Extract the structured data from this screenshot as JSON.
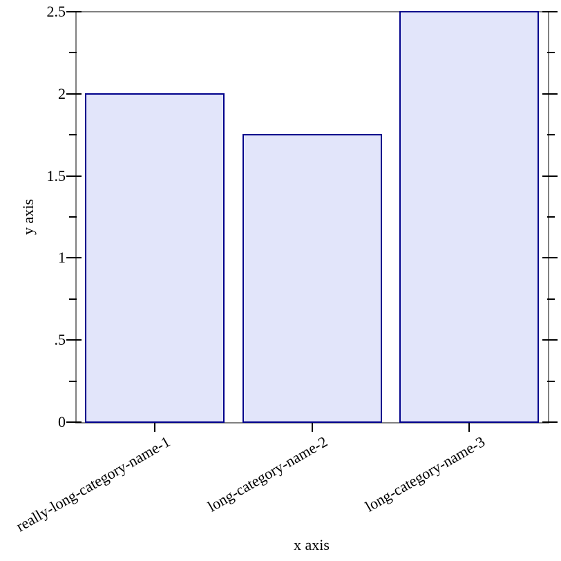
{
  "chart_data": {
    "type": "bar",
    "title": "",
    "categories": [
      "really-long-category-name-1",
      "long-category-name-2",
      "long-category-name-3"
    ],
    "values": [
      2,
      1.75,
      2.5
    ],
    "xlabel": "x axis",
    "ylabel": "y axis",
    "ylim": [
      0,
      2.5
    ],
    "y_major_ticks": [
      {
        "value": 0,
        "label": "0"
      },
      {
        "value": 0.5,
        "label": ".5"
      },
      {
        "value": 1,
        "label": "1"
      },
      {
        "value": 1.5,
        "label": "1.5"
      },
      {
        "value": 2,
        "label": "2"
      },
      {
        "value": 2.5,
        "label": "2.5"
      }
    ],
    "y_minor_ticks": [
      0.25,
      0.75,
      1.25,
      1.75,
      2.25
    ],
    "category_label_rotation_deg": -30,
    "grid": false,
    "legend_position": "none",
    "colors": {
      "bar_fill": "#e2e5fa",
      "bar_border": "#00008b",
      "frame": "#808080",
      "tick": "#000000",
      "text": "#000000",
      "background": "#ffffff"
    }
  }
}
